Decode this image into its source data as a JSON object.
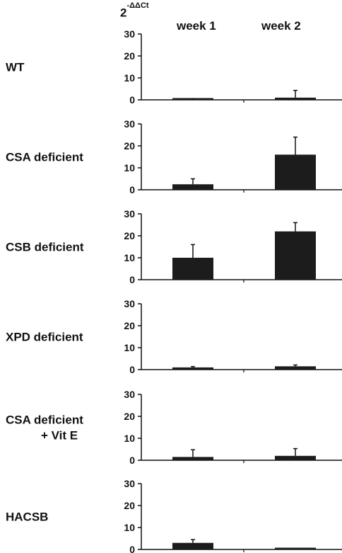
{
  "header": {
    "ylabel_base": "2",
    "ylabel_exp": "-ΔΔCt",
    "col1": "week 1",
    "col2": "week 2"
  },
  "chart_data": [
    {
      "type": "bar",
      "title": "WT",
      "categories": [
        "week 1",
        "week 2"
      ],
      "values": [
        0.1,
        1.0
      ],
      "errors": [
        0.2,
        3.3
      ],
      "ylim": [
        0,
        30
      ],
      "yticks": [
        0,
        10,
        20,
        30
      ]
    },
    {
      "type": "bar",
      "title": "CSA deficient",
      "categories": [
        "week 1",
        "week 2"
      ],
      "values": [
        2.5,
        16
      ],
      "errors": [
        2.5,
        8
      ],
      "ylim": [
        0,
        30
      ],
      "yticks": [
        0,
        10,
        20,
        30
      ]
    },
    {
      "type": "bar",
      "title": "CSB deficient",
      "categories": [
        "week 1",
        "week 2"
      ],
      "values": [
        10,
        22
      ],
      "errors": [
        6,
        4
      ],
      "ylim": [
        0,
        30
      ],
      "yticks": [
        0,
        10,
        20,
        30
      ]
    },
    {
      "type": "bar",
      "title": "XPD deficient",
      "categories": [
        "week 1",
        "week 2"
      ],
      "values": [
        1.0,
        1.5
      ],
      "errors": [
        0.4,
        0.6
      ],
      "ylim": [
        0,
        30
      ],
      "yticks": [
        0,
        10,
        20,
        30
      ]
    },
    {
      "type": "bar",
      "title": "CSA deficient\n+ Vit E",
      "categories": [
        "week 1",
        "week 2"
      ],
      "values": [
        1.5,
        2.0
      ],
      "errors": [
        3.3,
        3.3
      ],
      "ylim": [
        0,
        30
      ],
      "yticks": [
        0,
        10,
        20,
        30
      ]
    },
    {
      "type": "bar",
      "title": "HACSB",
      "categories": [
        "week 1",
        "week 2"
      ],
      "values": [
        3.0,
        0.3
      ],
      "errors": [
        1.5,
        0.1
      ],
      "ylim": [
        0,
        30
      ],
      "yticks": [
        0,
        10,
        20,
        30
      ]
    }
  ],
  "colors": {
    "bar": "#1c1c1c",
    "axis": "#111111"
  }
}
